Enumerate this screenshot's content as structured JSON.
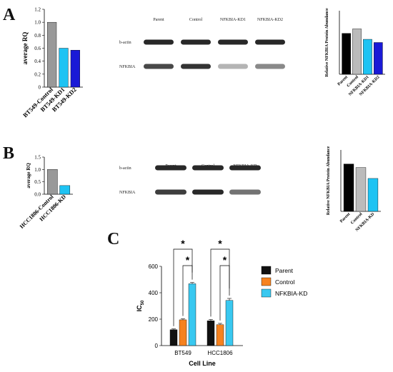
{
  "panel_letters": {
    "a": "A",
    "b": "B",
    "c": "C"
  },
  "chart_data": [
    {
      "id": "A-rq",
      "type": "bar",
      "ylabel": "average RQ",
      "ylim": [
        0,
        1.2
      ],
      "yticks": [
        "0",
        "0.2",
        "0.4",
        "0.6",
        "0.8",
        "1.0",
        "1.2"
      ],
      "categories": [
        "BT549-Control",
        "BT549-KD1",
        "BT549-KD2"
      ],
      "values": [
        1.0,
        0.6,
        0.57
      ],
      "colors": [
        "#999999",
        "#1ec3f3",
        "#1a1ad6"
      ]
    },
    {
      "id": "A-protein",
      "type": "bar",
      "ylabel": "Relative NFKBIA Protein Abundance",
      "ylim": [
        0,
        1.4
      ],
      "categories": [
        "Parent",
        "Control",
        "NFKBIA-KD1",
        "NFKBIA-KD2"
      ],
      "values": [
        0.9,
        1.0,
        0.77,
        0.7
      ],
      "colors": [
        "#000000",
        "#bbbbbb",
        "#1ec3f3",
        "#1a1ad6"
      ]
    },
    {
      "id": "B-rq",
      "type": "bar",
      "ylabel": "average RQ",
      "ylim": [
        0,
        1.5
      ],
      "yticks": [
        "0.0",
        "0.5",
        "1.0",
        "1.5"
      ],
      "categories": [
        "HCC1806-Control",
        "HCC1806-KD"
      ],
      "values": [
        1.0,
        0.35
      ],
      "colors": [
        "#999999",
        "#1ec3f3"
      ]
    },
    {
      "id": "B-protein",
      "type": "bar",
      "ylabel": "Relative NFKBIA Protein Abundance",
      "ylim": [
        0,
        1.4
      ],
      "categories": [
        "Parent",
        "Control",
        "NFKBIA-KD"
      ],
      "values": [
        1.08,
        1.0,
        0.75
      ],
      "colors": [
        "#000000",
        "#bbbbbb",
        "#1ec3f3"
      ]
    },
    {
      "id": "C-ic50",
      "type": "bar",
      "xlabel": "Cell Line",
      "ylabel": "IC",
      "ylabel_sub": "50",
      "ylim": [
        0,
        600
      ],
      "yticks": [
        "0",
        "200",
        "400",
        "600"
      ],
      "categories": [
        "BT549",
        "HCC1806"
      ],
      "series": [
        {
          "name": "Parent",
          "color": "#111111",
          "values": [
            120,
            188
          ],
          "errors": [
            6,
            10
          ]
        },
        {
          "name": "Control",
          "color": "#f6821f",
          "values": [
            195,
            158
          ],
          "errors": [
            8,
            10
          ]
        },
        {
          "name": "NFKBIA-KD",
          "color": "#39c8f0",
          "values": [
            468,
            342
          ],
          "errors": [
            10,
            15
          ]
        }
      ],
      "significance": "*"
    }
  ],
  "blots": {
    "A": {
      "lanes": [
        "Parent",
        "Control",
        "NFKBIA-KD1",
        "NFKBIA-KD2"
      ],
      "rows": [
        "b-actin",
        "NFKBIA"
      ],
      "intensity": [
        [
          1.0,
          1.0,
          1.0,
          1.0
        ],
        [
          0.85,
          0.95,
          0.35,
          0.55
        ]
      ]
    },
    "B": {
      "lanes": [
        "Parent",
        "Control",
        "NFKBIA-KD"
      ],
      "rows": [
        "b-actin",
        "NFKBIA"
      ],
      "intensity": [
        [
          1.0,
          1.0,
          1.0
        ],
        [
          0.9,
          1.0,
          0.65
        ]
      ]
    }
  }
}
